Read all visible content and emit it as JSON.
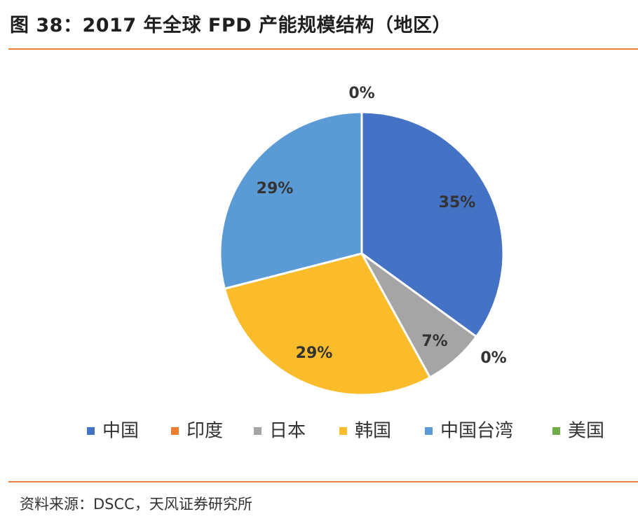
{
  "title": "图 38：2017 年全球 FPD 产能规模结构（地区）",
  "source": "资料来源：DSCC，天风证券研究所",
  "chart_data": {
    "type": "pie",
    "categories": [
      "中国",
      "印度",
      "日本",
      "韩国",
      "中国台湾",
      "美国"
    ],
    "values": [
      35,
      0,
      7,
      29,
      29,
      0
    ],
    "labels": [
      "35%",
      "0%",
      "7%",
      "29%",
      "29%",
      "0%"
    ],
    "colors": [
      "#4472c4",
      "#ed7d31",
      "#a5a5a5",
      "#fbbc2b",
      "#5b9bd5",
      "#70ad47"
    ],
    "title": "",
    "legend": "bottom"
  }
}
